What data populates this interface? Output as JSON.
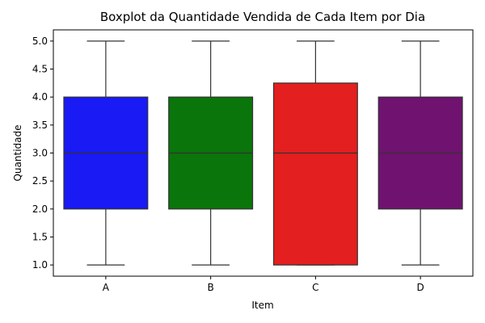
{
  "chart_data": {
    "type": "box",
    "title": "Boxplot da Quantidade Vendida de Cada Item por Dia",
    "xlabel": "Item",
    "ylabel": "Quantidade",
    "categories": [
      "A",
      "B",
      "C",
      "D"
    ],
    "boxes": [
      {
        "category": "A",
        "min": 1.0,
        "q1": 2.0,
        "median": 3.0,
        "q3": 4.0,
        "max": 5.0,
        "color": "#1a1af5"
      },
      {
        "category": "B",
        "min": 1.0,
        "q1": 2.0,
        "median": 3.0,
        "q3": 4.0,
        "max": 5.0,
        "color": "#0a750a"
      },
      {
        "category": "C",
        "min": 1.0,
        "q1": 1.0,
        "median": 3.0,
        "q3": 4.25,
        "max": 5.0,
        "color": "#e31f1f"
      },
      {
        "category": "D",
        "min": 1.0,
        "q1": 2.0,
        "median": 3.0,
        "q3": 4.0,
        "max": 5.0,
        "color": "#701270"
      }
    ],
    "ylim": [
      0.8,
      5.2
    ],
    "yticks": [
      "1.0",
      "1.5",
      "2.0",
      "2.5",
      "3.0",
      "3.5",
      "4.0",
      "4.5",
      "5.0"
    ],
    "grid": false,
    "legend": "none"
  }
}
